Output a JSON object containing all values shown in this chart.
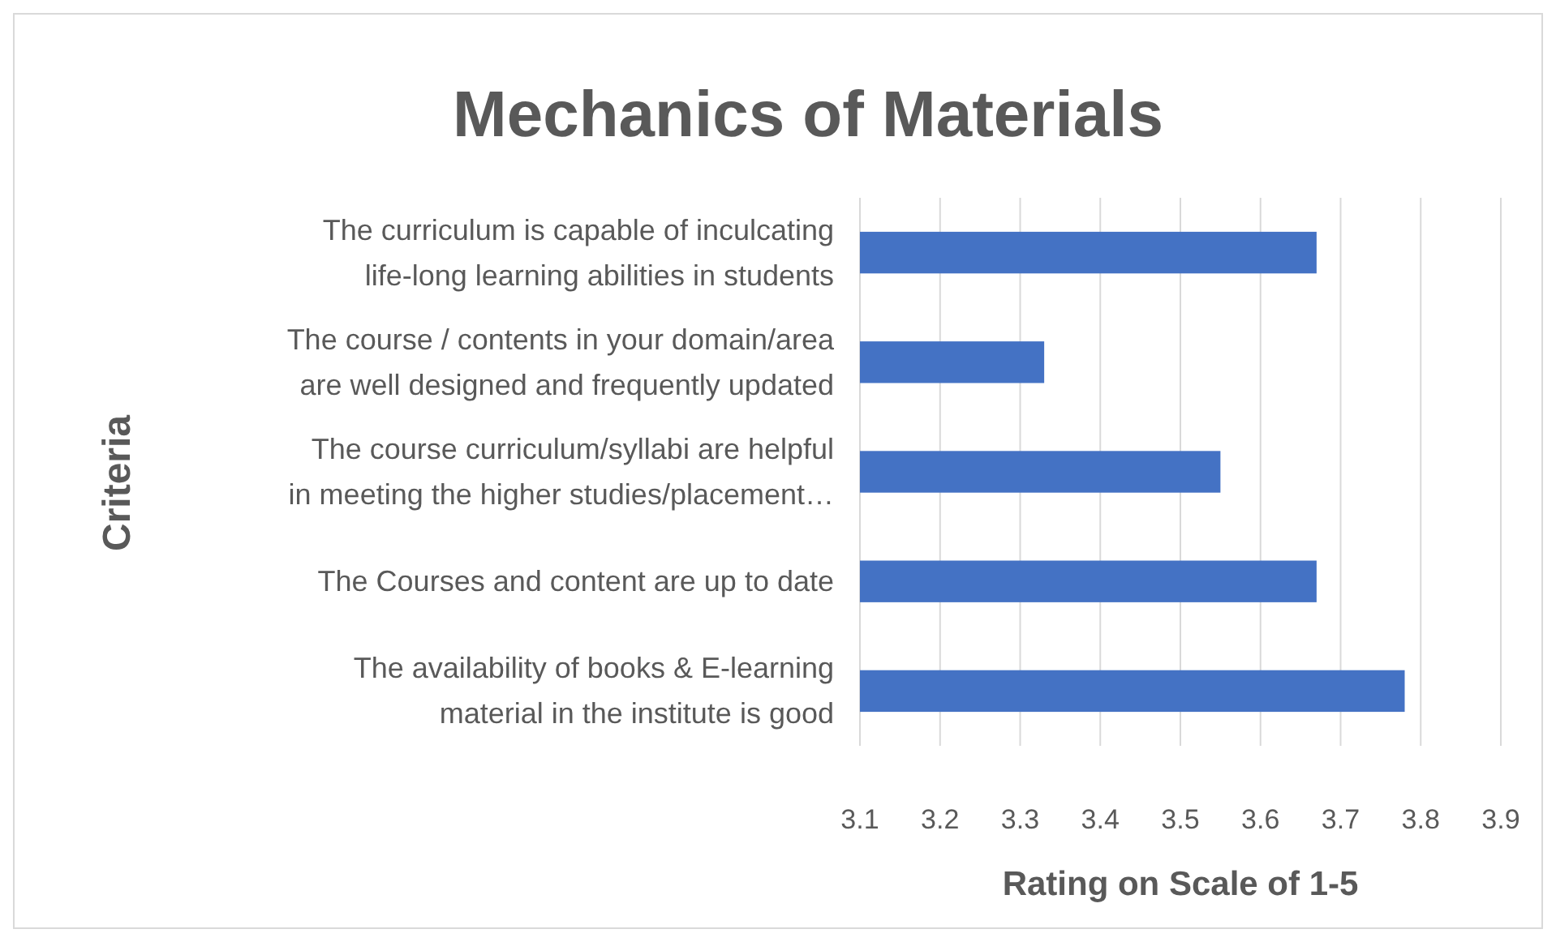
{
  "chart_data": {
    "type": "bar",
    "orientation": "horizontal",
    "title": "Mechanics of Materials",
    "xlabel": "Rating on Scale of 1-5",
    "ylabel": "Criteria",
    "categories": [
      "The curriculum is capable of inculcating\nlife-long learning abilities in students",
      "The course / contents in your domain/area\nare well designed and frequently updated",
      "The course curriculum/syllabi are helpful\nin meeting the higher studies/placement…",
      "The Courses and content are up to date",
      "The availability of books & E-learning\nmaterial in the institute is good"
    ],
    "values": [
      3.67,
      3.33,
      3.55,
      3.67,
      3.78
    ],
    "color": "#4472c4",
    "xlim": [
      3.1,
      3.9
    ],
    "xticks": [
      3.1,
      3.2,
      3.3,
      3.4,
      3.5,
      3.6,
      3.7,
      3.8,
      3.9
    ],
    "grid": "x"
  }
}
